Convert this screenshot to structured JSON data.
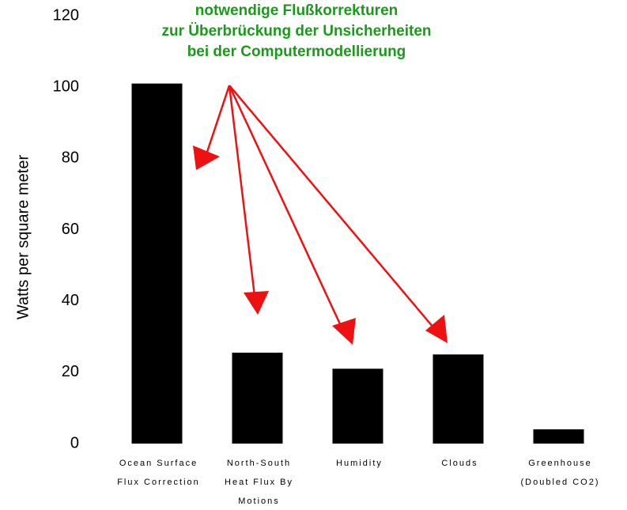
{
  "chart_data": {
    "type": "bar",
    "y_label": "Watts per square meter",
    "annotation": [
      "notwendige Flußkorrekturen",
      "zur Überbrückung der Unsicherheiten",
      "bei der Computermodellierung"
    ],
    "categories": [
      [
        "Ocean Surface",
        "Flux Correction"
      ],
      [
        "North-South",
        "Heat Flux By",
        "Motions"
      ],
      [
        "Humidity"
      ],
      [
        "Clouds"
      ],
      [
        "Greenhouse",
        "(Doubled CO2)"
      ]
    ],
    "values": [
      101,
      25.5,
      21,
      25,
      4
    ],
    "color": "#000000",
    "ylim": [
      0,
      120
    ],
    "yticks": [
      0,
      20,
      40,
      60,
      80,
      100,
      120
    ],
    "grid": false
  }
}
